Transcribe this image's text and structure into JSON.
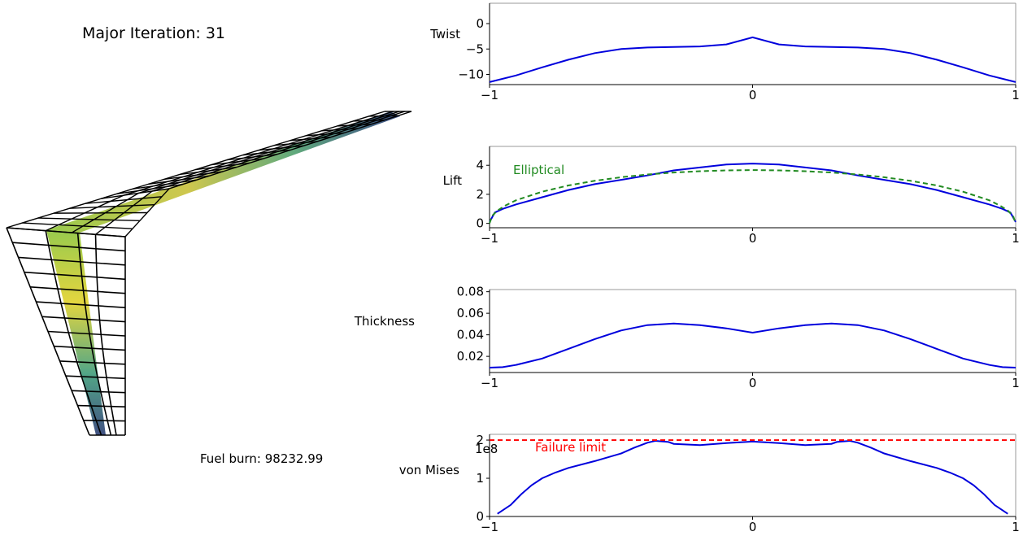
{
  "iteration_label": "Major Iteration: 31",
  "fuel_label": "Fuel burn: 98232.99",
  "colors": {
    "line": "#0000dd",
    "elliptical": "#228b22",
    "limit": "#ff0000",
    "mesh": "#000000"
  },
  "chart_data": [
    {
      "type": "line",
      "ylabel": "Twist",
      "xlim": [
        -1,
        1
      ],
      "ylim": [
        -12,
        4
      ],
      "xticks": [
        "−1",
        "0",
        "1"
      ],
      "yticks": [
        {
          "v": 0,
          "t": "0"
        },
        {
          "v": -5,
          "t": "−5"
        },
        {
          "v": -10,
          "t": "−10"
        }
      ],
      "series": [
        {
          "values": [
            [
              -1,
              -11.5
            ],
            [
              -0.9,
              -10.2
            ],
            [
              -0.8,
              -8.6
            ],
            [
              -0.7,
              -7.1
            ],
            [
              -0.6,
              -5.8
            ],
            [
              -0.5,
              -5.0
            ],
            [
              -0.4,
              -4.7
            ],
            [
              -0.3,
              -4.6
            ],
            [
              -0.2,
              -4.5
            ],
            [
              -0.1,
              -4.1
            ],
            [
              0,
              -2.7
            ],
            [
              0.1,
              -4.1
            ],
            [
              0.2,
              -4.5
            ],
            [
              0.3,
              -4.6
            ],
            [
              0.4,
              -4.7
            ],
            [
              0.5,
              -5.0
            ],
            [
              0.6,
              -5.8
            ],
            [
              0.7,
              -7.1
            ],
            [
              0.8,
              -8.6
            ],
            [
              0.9,
              -10.2
            ],
            [
              1,
              -11.5
            ]
          ]
        }
      ]
    },
    {
      "type": "line",
      "ylabel": "Lift",
      "xlim": [
        -1,
        1
      ],
      "ylim": [
        -0.3,
        5.3
      ],
      "xticks": [
        "−1",
        "0",
        "1"
      ],
      "yticks": [
        {
          "v": 4,
          "t": "4"
        },
        {
          "v": 2,
          "t": "2"
        },
        {
          "v": 0,
          "t": "0"
        }
      ],
      "annotation": "Elliptical",
      "series": [
        {
          "values": [
            [
              -1,
              0.1
            ],
            [
              -0.98,
              0.75
            ],
            [
              -0.95,
              1.0
            ],
            [
              -0.9,
              1.3
            ],
            [
              -0.8,
              1.8
            ],
            [
              -0.7,
              2.3
            ],
            [
              -0.6,
              2.7
            ],
            [
              -0.5,
              3.0
            ],
            [
              -0.4,
              3.3
            ],
            [
              -0.3,
              3.65
            ],
            [
              -0.2,
              3.85
            ],
            [
              -0.1,
              4.05
            ],
            [
              0,
              4.12
            ],
            [
              0.1,
              4.05
            ],
            [
              0.2,
              3.85
            ],
            [
              0.3,
              3.65
            ],
            [
              0.4,
              3.3
            ],
            [
              0.5,
              3.0
            ],
            [
              0.6,
              2.7
            ],
            [
              0.7,
              2.3
            ],
            [
              0.8,
              1.8
            ],
            [
              0.9,
              1.3
            ],
            [
              0.95,
              1.0
            ],
            [
              0.98,
              0.75
            ],
            [
              1,
              0.1
            ]
          ]
        },
        {
          "values": [
            [
              -1,
              0.0
            ],
            [
              -0.99,
              0.52
            ],
            [
              -0.97,
              0.88
            ],
            [
              -0.94,
              1.23
            ],
            [
              -0.9,
              1.59
            ],
            [
              -0.8,
              2.18
            ],
            [
              -0.7,
              2.61
            ],
            [
              -0.6,
              2.93
            ],
            [
              -0.5,
              3.18
            ],
            [
              -0.4,
              3.37
            ],
            [
              -0.3,
              3.5
            ],
            [
              -0.2,
              3.59
            ],
            [
              -0.1,
              3.65
            ],
            [
              0,
              3.67
            ],
            [
              0.1,
              3.65
            ],
            [
              0.2,
              3.59
            ],
            [
              0.3,
              3.5
            ],
            [
              0.4,
              3.37
            ],
            [
              0.5,
              3.18
            ],
            [
              0.6,
              2.93
            ],
            [
              0.7,
              2.61
            ],
            [
              0.8,
              2.18
            ],
            [
              0.9,
              1.59
            ],
            [
              0.94,
              1.23
            ],
            [
              0.97,
              0.88
            ],
            [
              0.99,
              0.52
            ],
            [
              1,
              0.0
            ]
          ]
        }
      ]
    },
    {
      "type": "line",
      "ylabel": "Thickness",
      "xlim": [
        -1,
        1
      ],
      "ylim": [
        0.005,
        0.082
      ],
      "xticks": [
        "−1",
        "0",
        "1"
      ],
      "yticks": [
        {
          "v": 0.08,
          "t": "0.08"
        },
        {
          "v": 0.06,
          "t": "0.06"
        },
        {
          "v": 0.04,
          "t": "0.04"
        },
        {
          "v": 0.02,
          "t": "0.02"
        }
      ],
      "series": [
        {
          "values": [
            [
              -1,
              0.0095
            ],
            [
              -0.95,
              0.01
            ],
            [
              -0.9,
              0.012
            ],
            [
              -0.8,
              0.018
            ],
            [
              -0.7,
              0.027
            ],
            [
              -0.6,
              0.036
            ],
            [
              -0.5,
              0.044
            ],
            [
              -0.4,
              0.049
            ],
            [
              -0.3,
              0.0505
            ],
            [
              -0.2,
              0.049
            ],
            [
              -0.1,
              0.046
            ],
            [
              0,
              0.042
            ],
            [
              0.1,
              0.046
            ],
            [
              0.2,
              0.049
            ],
            [
              0.3,
              0.0505
            ],
            [
              0.4,
              0.049
            ],
            [
              0.5,
              0.044
            ],
            [
              0.6,
              0.036
            ],
            [
              0.7,
              0.027
            ],
            [
              0.8,
              0.018
            ],
            [
              0.9,
              0.012
            ],
            [
              0.95,
              0.01
            ],
            [
              1,
              0.0095
            ]
          ]
        }
      ]
    },
    {
      "type": "line",
      "ylabel": "von Mises",
      "offset_label": "1e8",
      "annotation": "Failure limit",
      "limit": 2.0,
      "xlim": [
        -1,
        1
      ],
      "ylim": [
        0,
        2.15
      ],
      "xticks": [
        "−1",
        "0",
        "1"
      ],
      "yticks": [
        {
          "v": 2,
          "t": "2"
        },
        {
          "v": 1,
          "t": "1"
        },
        {
          "v": 0,
          "t": "0"
        }
      ],
      "series": [
        {
          "values": [
            [
              -0.97,
              0.07
            ],
            [
              -0.92,
              0.3
            ],
            [
              -0.88,
              0.58
            ],
            [
              -0.84,
              0.82
            ],
            [
              -0.8,
              1.0
            ],
            [
              -0.75,
              1.15
            ],
            [
              -0.7,
              1.27
            ],
            [
              -0.6,
              1.45
            ],
            [
              -0.5,
              1.65
            ],
            [
              -0.45,
              1.8
            ],
            [
              -0.4,
              1.93
            ],
            [
              -0.37,
              1.98
            ],
            [
              -0.32,
              1.95
            ],
            [
              -0.3,
              1.9
            ],
            [
              -0.2,
              1.87
            ],
            [
              -0.1,
              1.92
            ],
            [
              0,
              1.96
            ],
            [
              0.1,
              1.92
            ],
            [
              0.2,
              1.87
            ],
            [
              0.3,
              1.9
            ],
            [
              0.32,
              1.95
            ],
            [
              0.37,
              1.98
            ],
            [
              0.4,
              1.93
            ],
            [
              0.45,
              1.8
            ],
            [
              0.5,
              1.65
            ],
            [
              0.6,
              1.45
            ],
            [
              0.7,
              1.27
            ],
            [
              0.75,
              1.15
            ],
            [
              0.8,
              1.0
            ],
            [
              0.84,
              0.82
            ],
            [
              0.88,
              0.58
            ],
            [
              0.92,
              0.3
            ],
            [
              0.97,
              0.07
            ]
          ]
        }
      ]
    }
  ]
}
